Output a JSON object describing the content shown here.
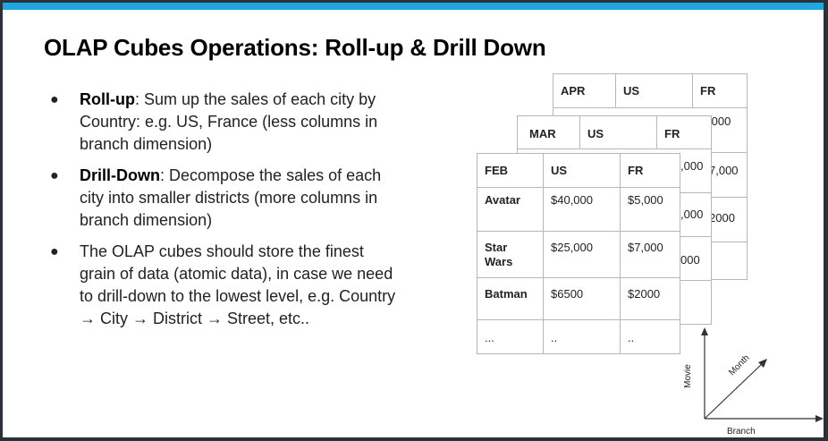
{
  "slide": {
    "title": "OLAP Cubes Operations: Roll-up & Drill Down",
    "bullets": [
      {
        "term": "Roll-up",
        "text": ": Sum up the sales of each city by Country: e.g. US, France (less columns in branch dimension)"
      },
      {
        "term": "Drill-Down",
        "text": ": Decompose the sales of each city into smaller districts (more columns in branch dimension)"
      },
      {
        "term": "",
        "text": "The OLAP cubes should store the finest grain of data (atomic data), in case we need to drill-down to the lowest level, e.g. Country → City → District → Street, etc.."
      }
    ]
  },
  "cube": {
    "apr": {
      "month": "APR",
      "col1": "US",
      "col2": "FR",
      "peek": [
        ",000",
        "7,000",
        "2000"
      ]
    },
    "mar": {
      "month": "MAR",
      "col1": "US",
      "col2": "FR",
      "peek": [
        ",000",
        ",000",
        "000"
      ]
    },
    "feb": {
      "month": "FEB",
      "col1": "US",
      "col2": "FR",
      "rows": [
        {
          "movie": "Avatar",
          "us": "$40,000",
          "fr": "$5,000"
        },
        {
          "movie": "Star Wars",
          "us": "$25,000",
          "fr": "$7,000"
        },
        {
          "movie": "Batman",
          "us": "$6500",
          "fr": "$2000"
        },
        {
          "movie": "...",
          "us": "..",
          "fr": ".."
        }
      ]
    }
  },
  "axes": {
    "y_label": "Movie",
    "diag_label": "Month",
    "x_label": "Branch"
  },
  "colors": {
    "accent_bar": "#1fa8e0",
    "frame": "#2b3138"
  }
}
